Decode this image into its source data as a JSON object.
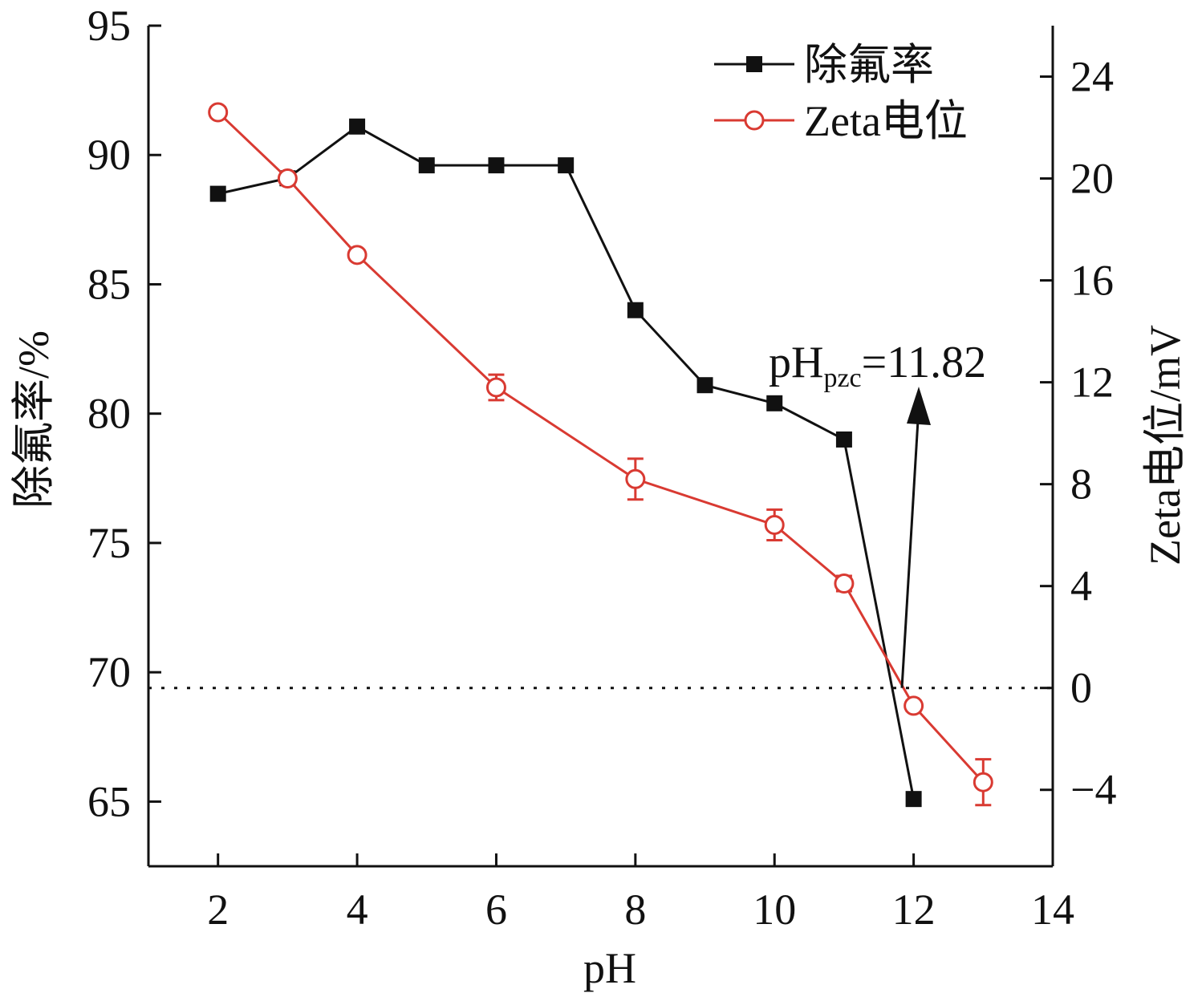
{
  "chart_data": {
    "type": "line",
    "xlabel": "pH",
    "ylabel_left": "除氟率/%",
    "ylabel_right": "Zeta电位/mV",
    "xlim": [
      1,
      14
    ],
    "xticks": [
      2,
      4,
      6,
      8,
      10,
      12,
      14
    ],
    "ylim_left": [
      62.5,
      95
    ],
    "yticks_left": [
      65,
      70,
      75,
      80,
      85,
      90,
      95
    ],
    "ylim_right": [
      -7,
      26
    ],
    "yticks_right": [
      -4,
      0,
      4,
      8,
      12,
      16,
      20,
      24
    ],
    "yticks_right_labels": [
      "−4",
      "0",
      "4",
      "8",
      "12",
      "16",
      "20",
      "24"
    ],
    "reference_line": {
      "axis": "right",
      "value": 0,
      "style": "dotted"
    },
    "grid": false,
    "legend_position": "top-right",
    "series": [
      {
        "name": "除氟率",
        "axis": "left",
        "color": "#111111",
        "marker": "filled-square",
        "x": [
          2,
          3,
          4,
          5,
          6,
          7,
          8,
          9,
          10,
          11,
          12
        ],
        "y": [
          88.5,
          89.1,
          91.1,
          89.6,
          89.6,
          89.6,
          84.0,
          81.1,
          80.4,
          79.0,
          65.1
        ]
      },
      {
        "name": "Zeta电位",
        "axis": "right",
        "color": "#d93a32",
        "marker": "open-circle",
        "x": [
          2,
          3,
          4,
          6,
          8,
          10,
          11,
          12,
          13
        ],
        "y": [
          22.6,
          20.0,
          17.0,
          11.8,
          8.2,
          6.4,
          4.1,
          -0.7,
          -3.7
        ],
        "error": [
          0.2,
          0,
          0.2,
          0.5,
          0.8,
          0.6,
          0.3,
          0.2,
          0.9
        ]
      }
    ],
    "annotation": {
      "main": "pH",
      "sub": "pzc",
      "value": "=11.82"
    }
  }
}
